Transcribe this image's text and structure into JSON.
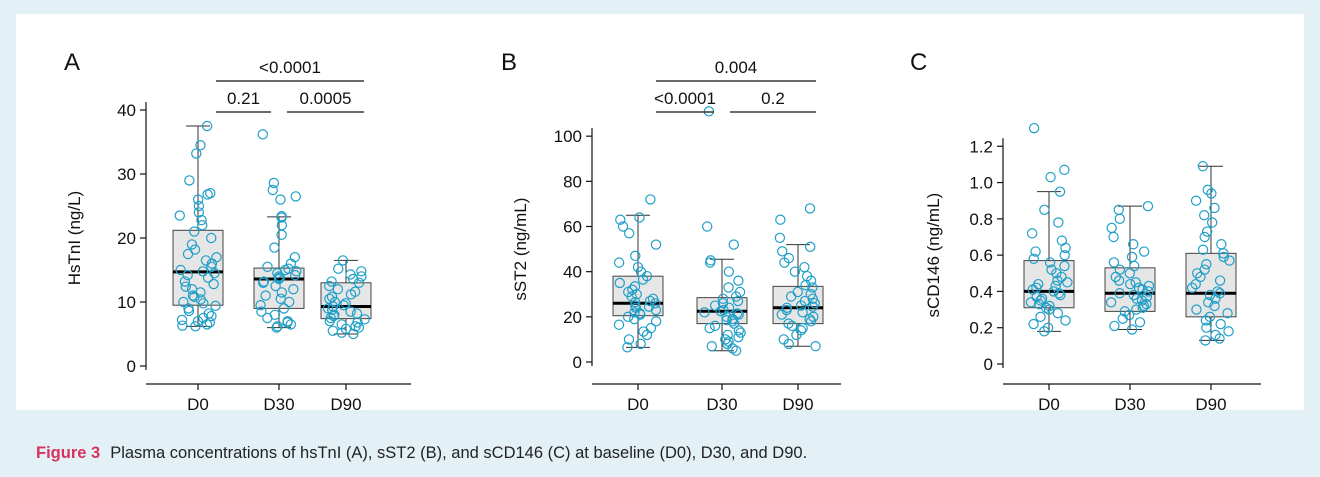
{
  "caption": {
    "label": "Figure 3",
    "text": "Plasma concentrations of hsTnI (A), sST2 (B), and sCD146 (C) at baseline (D0), D30, and D90."
  },
  "colors": {
    "points": "#1f9fc8",
    "box_fill": "#e6e6e6",
    "axis": "#111111"
  },
  "chart_data": [
    {
      "type": "box",
      "panel": "A",
      "ylabel": "HsTnI (ng/L)",
      "categories": [
        "D0",
        "D30",
        "D90"
      ],
      "ylim": [
        0,
        40
      ],
      "yticks": [
        0,
        10,
        20,
        30,
        40
      ],
      "boxes": [
        {
          "min": 6.2,
          "q1": 9.5,
          "median": 14.7,
          "q3": 21.2,
          "max": 37.5
        },
        {
          "min": 6.0,
          "q1": 9.0,
          "median": 13.6,
          "q3": 15.3,
          "max": 23.3
        },
        {
          "min": 5.0,
          "q1": 7.4,
          "median": 9.3,
          "q3": 13.0,
          "max": 16.5
        }
      ],
      "points": [
        [
          37.5,
          34.5,
          33.2,
          29.0,
          27.0,
          26.8,
          26.0,
          25.0,
          24.0,
          23.5,
          22.8,
          22.0,
          21.0,
          20.0,
          19.0,
          18.2,
          17.5,
          17.0,
          16.5,
          16.0,
          15.5,
          15.0,
          14.8,
          14.5,
          14.2,
          13.8,
          13.2,
          12.8,
          12.4,
          12.0,
          11.5,
          11.0,
          10.8,
          10.4,
          10.0,
          9.8,
          9.4,
          9.0,
          8.6,
          8.2,
          7.8,
          7.5,
          7.2,
          7.0,
          6.8,
          6.5,
          6.3,
          6.2
        ],
        [
          36.2,
          28.6,
          27.5,
          26.5,
          26.0,
          23.4,
          23.2,
          22.0,
          20.5,
          18.5,
          17.0,
          16.0,
          15.5,
          15.2,
          15.0,
          14.8,
          14.5,
          14.2,
          14.0,
          13.8,
          13.6,
          13.2,
          13.0,
          12.5,
          12.0,
          11.5,
          11.0,
          10.5,
          10.0,
          9.5,
          9.0,
          8.5,
          8.0,
          7.5,
          7.0,
          6.8,
          6.5,
          6.2,
          6.0
        ],
        [
          16.5,
          15.2,
          14.8,
          14.3,
          14.0,
          13.6,
          13.2,
          13.0,
          12.5,
          12.0,
          11.6,
          11.2,
          10.8,
          10.5,
          10.0,
          9.8,
          9.5,
          9.3,
          9.0,
          8.8,
          8.5,
          8.2,
          8.0,
          7.8,
          7.5,
          7.3,
          7.0,
          6.8,
          6.5,
          6.2,
          6.0,
          5.8,
          5.5,
          5.2,
          5.0
        ]
      ],
      "comparisons": [
        {
          "label": "0.21",
          "from": 0,
          "to": 1,
          "level": 1
        },
        {
          "label": "0.0005",
          "from": 1,
          "to": 2,
          "level": 1
        },
        {
          "label": "<0.0001",
          "from": 0,
          "to": 2,
          "level": 2
        }
      ]
    },
    {
      "type": "box",
      "panel": "B",
      "ylabel": "sST2 (ng/mL)",
      "categories": [
        "D0",
        "D30",
        "D90"
      ],
      "ylim": [
        0,
        120
      ],
      "yticks": [
        0,
        20,
        40,
        60,
        80,
        100
      ],
      "boxes": [
        {
          "min": 6.5,
          "q1": 20.5,
          "median": 26.0,
          "q3": 38.0,
          "max": 65.0
        },
        {
          "min": 5.0,
          "q1": 17.0,
          "median": 22.5,
          "q3": 28.5,
          "max": 45.5
        },
        {
          "min": 7.0,
          "q1": 17.0,
          "median": 24.0,
          "q3": 33.5,
          "max": 52.0
        }
      ],
      "points": [
        [
          72.0,
          64.0,
          63.0,
          60.0,
          57.0,
          52.0,
          47.0,
          44.0,
          42.0,
          40.0,
          38.0,
          36.5,
          35.0,
          33.5,
          32.0,
          31.0,
          30.0,
          29.0,
          28.0,
          27.0,
          26.5,
          26.0,
          25.0,
          24.5,
          24.0,
          23.0,
          22.0,
          21.5,
          21.0,
          20.0,
          19.0,
          18.0,
          16.5,
          15.0,
          13.5,
          12.0,
          10.0,
          8.0,
          6.5
        ],
        [
          111.0,
          60.0,
          52.0,
          45.0,
          44.0,
          40.0,
          36.0,
          33.0,
          31.0,
          29.0,
          28.0,
          27.0,
          26.0,
          25.0,
          24.0,
          23.0,
          22.5,
          22.0,
          21.5,
          21.0,
          20.0,
          19.0,
          18.5,
          18.0,
          17.0,
          16.0,
          15.0,
          14.0,
          13.0,
          12.0,
          11.0,
          10.0,
          9.0,
          8.0,
          7.0,
          6.0,
          5.0
        ],
        [
          68.0,
          63.0,
          55.0,
          51.0,
          49.0,
          46.0,
          44.0,
          42.0,
          40.0,
          38.0,
          36.0,
          34.0,
          33.0,
          31.0,
          30.0,
          29.0,
          28.0,
          27.0,
          26.0,
          25.0,
          24.5,
          24.0,
          23.0,
          22.0,
          21.0,
          20.0,
          19.0,
          18.0,
          17.0,
          16.0,
          15.0,
          14.0,
          12.0,
          10.0,
          8.0,
          7.0
        ]
      ],
      "comparisons": [
        {
          "label": "<0.0001",
          "from": 0,
          "to": 1,
          "level": 1
        },
        {
          "label": "0.2",
          "from": 1,
          "to": 2,
          "level": 1
        },
        {
          "label": "0.004",
          "from": 0,
          "to": 2,
          "level": 2
        }
      ]
    },
    {
      "type": "box",
      "panel": "C",
      "ylabel": "sCD146 (ng/mL)",
      "categories": [
        "D0",
        "D30",
        "D90"
      ],
      "ylim": [
        0,
        1.4
      ],
      "yticks": [
        0,
        0.2,
        0.4,
        0.6,
        0.8,
        1.0,
        1.2
      ],
      "ytick_labels": [
        "0",
        "0.2",
        "0.4",
        "0.6",
        "0.8",
        "1.0",
        "1.2"
      ],
      "boxes": [
        {
          "min": 0.18,
          "q1": 0.31,
          "median": 0.4,
          "q3": 0.57,
          "max": 0.95
        },
        {
          "min": 0.19,
          "q1": 0.29,
          "median": 0.39,
          "q3": 0.53,
          "max": 0.87
        },
        {
          "min": 0.13,
          "q1": 0.26,
          "median": 0.39,
          "q3": 0.61,
          "max": 1.09
        }
      ],
      "points": [
        [
          1.3,
          1.07,
          1.03,
          0.95,
          0.85,
          0.78,
          0.72,
          0.68,
          0.64,
          0.62,
          0.6,
          0.58,
          0.56,
          0.54,
          0.52,
          0.5,
          0.48,
          0.46,
          0.45,
          0.44,
          0.43,
          0.42,
          0.41,
          0.4,
          0.39,
          0.38,
          0.37,
          0.36,
          0.35,
          0.34,
          0.33,
          0.32,
          0.31,
          0.3,
          0.28,
          0.26,
          0.24,
          0.22,
          0.2,
          0.18
        ],
        [
          0.87,
          0.85,
          0.8,
          0.75,
          0.7,
          0.66,
          0.62,
          0.59,
          0.56,
          0.54,
          0.52,
          0.5,
          0.48,
          0.46,
          0.45,
          0.44,
          0.43,
          0.42,
          0.41,
          0.4,
          0.39,
          0.38,
          0.37,
          0.36,
          0.35,
          0.34,
          0.33,
          0.32,
          0.31,
          0.3,
          0.29,
          0.27,
          0.25,
          0.23,
          0.21,
          0.19
        ],
        [
          1.09,
          0.96,
          0.94,
          0.9,
          0.86,
          0.82,
          0.78,
          0.73,
          0.7,
          0.66,
          0.63,
          0.61,
          0.59,
          0.57,
          0.55,
          0.52,
          0.5,
          0.48,
          0.46,
          0.44,
          0.42,
          0.4,
          0.39,
          0.38,
          0.36,
          0.34,
          0.32,
          0.3,
          0.28,
          0.26,
          0.24,
          0.22,
          0.2,
          0.18,
          0.16,
          0.14,
          0.13
        ]
      ],
      "comparisons": []
    }
  ]
}
